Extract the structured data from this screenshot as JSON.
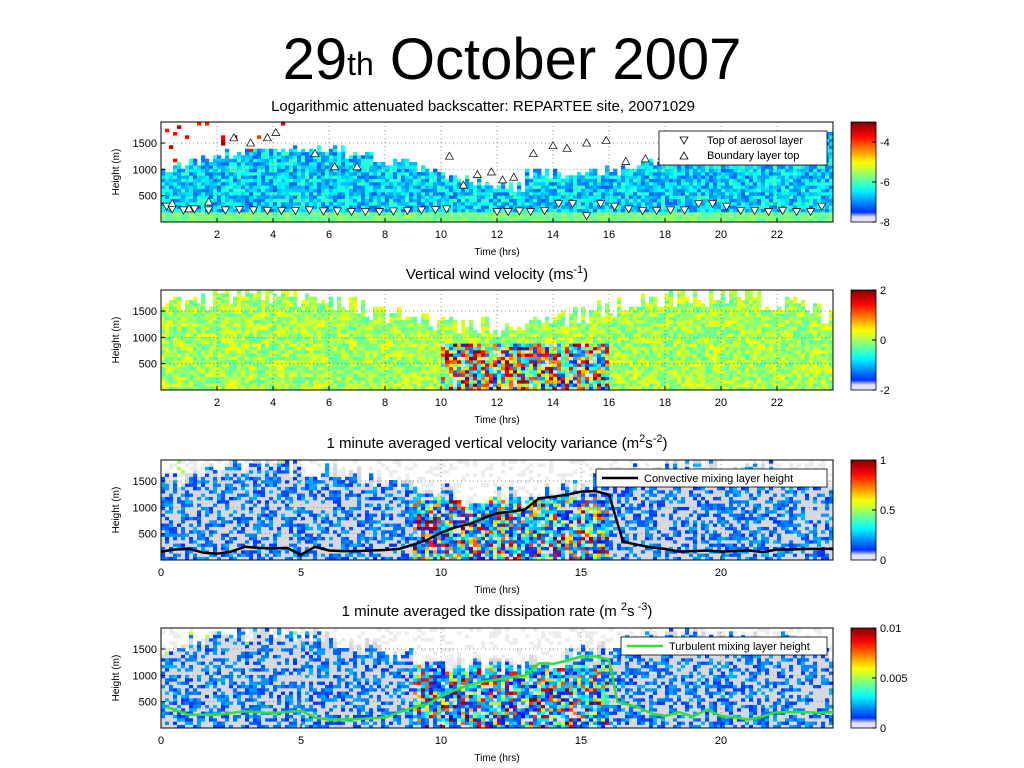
{
  "slide": {
    "title_main": "29",
    "title_sup": "th",
    "title_rest": " October 2007"
  },
  "chart_data": [
    {
      "id": "backscatter",
      "type": "heatmap",
      "title": "Logarithmic attenuated backscatter: REPARTEE site, 20071029",
      "xlabel": "Time (hrs)",
      "ylabel": "Height (m)",
      "xlim": [
        0,
        24
      ],
      "ylim": [
        0,
        1900
      ],
      "xticks": [
        2,
        4,
        6,
        8,
        10,
        12,
        14,
        16,
        18,
        20,
        22
      ],
      "yticks": [
        500,
        1000,
        1500
      ],
      "colorbar": {
        "min": -8,
        "max": -3,
        "ticks": [
          "-4",
          "-6",
          "-8"
        ],
        "tick_values": [
          -4,
          -6,
          -8
        ]
      },
      "legend": {
        "position": "top-right",
        "entries": [
          {
            "symbol": "down-triangle",
            "label": "Top of aerosol layer"
          },
          {
            "symbol": "up-triangle",
            "label": "Boundary layer top"
          }
        ]
      },
      "series": [
        {
          "name": "Top of aerosol layer",
          "marker": "down-triangle",
          "x": [
            0.2,
            0.4,
            0.8,
            1.2,
            1.7,
            2.3,
            2.8,
            3.3,
            3.8,
            4.3,
            4.8,
            5.3,
            5.8,
            6.3,
            6.8,
            7.3,
            7.8,
            8.3,
            8.8,
            9.3,
            9.8,
            10.2,
            12.0,
            12.4,
            12.8,
            13.2,
            13.7,
            14.2,
            14.7,
            15.2,
            15.7,
            16.2,
            16.7,
            17.2,
            17.7,
            18.2,
            18.7,
            19.2,
            19.7,
            20.2,
            20.7,
            21.2,
            21.7,
            22.2,
            22.7,
            23.2,
            23.6
          ],
          "y": [
            300,
            250,
            230,
            250,
            230,
            230,
            240,
            230,
            220,
            220,
            220,
            230,
            210,
            210,
            200,
            200,
            200,
            210,
            220,
            230,
            240,
            250,
            200,
            200,
            210,
            200,
            220,
            350,
            350,
            120,
            350,
            300,
            250,
            220,
            220,
            230,
            230,
            350,
            350,
            300,
            220,
            220,
            200,
            220,
            200,
            200,
            300
          ]
        },
        {
          "name": "Boundary layer top",
          "marker": "up-triangle",
          "x": [
            0.4,
            1.0,
            1.7,
            2.6,
            3.2,
            3.8,
            4.1,
            5.5,
            6.2,
            7.0,
            10.3,
            10.8,
            11.3,
            11.8,
            12.2,
            12.6,
            13.3,
            14.0,
            14.5,
            15.2,
            15.9,
            16.6,
            17.3,
            17.9,
            18.5,
            19.1,
            19.7,
            20.3,
            20.9,
            21.5,
            22.1,
            22.7,
            23.3
          ],
          "y": [
            350,
            250,
            380,
            1600,
            1500,
            1600,
            1700,
            1300,
            1050,
            1050,
            1250,
            700,
            900,
            950,
            800,
            850,
            1300,
            1450,
            1400,
            1500,
            1550,
            1150,
            1200,
            1250,
            1200,
            1250,
            1350,
            1450,
            1400,
            1350,
            1400,
            1250,
            1250
          ]
        }
      ]
    },
    {
      "id": "wind",
      "type": "heatmap",
      "title_parts": [
        "Vertical wind velocity (ms",
        "-1",
        ")"
      ],
      "xlabel": "Time (hrs)",
      "ylabel": "Height (m)",
      "xlim": [
        0,
        24
      ],
      "ylim": [
        0,
        1900
      ],
      "xticks": [
        2,
        4,
        6,
        8,
        10,
        12,
        14,
        16,
        18,
        20,
        22
      ],
      "yticks": [
        500,
        1000,
        1500
      ],
      "colorbar": {
        "min": -2,
        "max": 2,
        "ticks": [
          "2",
          "0",
          "-2"
        ],
        "tick_values": [
          2,
          0,
          -2
        ]
      }
    },
    {
      "id": "variance",
      "type": "heatmap",
      "title_parts": [
        "1 minute averaged vertical velocity variance (m",
        "2",
        "s",
        "-2",
        ")"
      ],
      "xlabel": "Time (hrs)",
      "ylabel": "Height (m)",
      "xlim": [
        0,
        24
      ],
      "ylim": [
        0,
        1900
      ],
      "xticks": [
        0,
        5,
        10,
        15,
        20
      ],
      "yticks": [
        500,
        1000,
        1500
      ],
      "colorbar": {
        "min": 0,
        "max": 1,
        "ticks": [
          "1",
          "0.5",
          "0"
        ],
        "tick_values": [
          1,
          0.5,
          0
        ]
      },
      "legend": {
        "position": "top-right",
        "entries": [
          {
            "symbol": "black-line",
            "label": "Convective mixing layer height"
          }
        ]
      },
      "series": [
        {
          "name": "Convective mixing layer height",
          "color": "#000000",
          "x": [
            0,
            0.5,
            1,
            1.5,
            2,
            2.5,
            3,
            3.5,
            4,
            4.5,
            5,
            5.5,
            6,
            6.5,
            7,
            7.5,
            8,
            8.5,
            9,
            9.5,
            10,
            10.5,
            11,
            11.5,
            12,
            12.5,
            13,
            13.5,
            14,
            14.5,
            15,
            15.5,
            16,
            16.5,
            17,
            17.5,
            18,
            18.5,
            19,
            19.5,
            20,
            20.5,
            21,
            21.5,
            22,
            22.5,
            23,
            23.5,
            24
          ],
          "y": [
            160,
            200,
            210,
            140,
            120,
            160,
            250,
            230,
            220,
            230,
            100,
            250,
            180,
            170,
            170,
            180,
            190,
            210,
            290,
            380,
            520,
            620,
            680,
            790,
            890,
            920,
            960,
            1170,
            1200,
            1240,
            1300,
            1310,
            1240,
            350,
            290,
            240,
            210,
            160,
            170,
            180,
            160,
            170,
            180,
            150,
            200,
            200,
            210,
            210,
            210
          ]
        }
      ]
    },
    {
      "id": "tke",
      "type": "heatmap",
      "title_parts": [
        "1 minute averaged tke dissipation rate (m ",
        "2",
        "s",
        " -3",
        ")"
      ],
      "xlabel": "Time (hrs)",
      "ylabel": "Height (m)",
      "xlim": [
        0,
        24
      ],
      "ylim": [
        0,
        1900
      ],
      "xticks": [
        0,
        5,
        10,
        15,
        20
      ],
      "yticks": [
        500,
        1000,
        1500
      ],
      "colorbar": {
        "min": 0,
        "max": 0.01,
        "ticks": [
          "0.01",
          "0.005",
          "0"
        ],
        "tick_values": [
          0.01,
          0.005,
          0
        ]
      },
      "legend": {
        "position": "top-right",
        "entries": [
          {
            "symbol": "green-line",
            "label": "Turbulent mixing layer height"
          }
        ]
      },
      "series": [
        {
          "name": "Turbulent mixing layer height",
          "color": "#33dd33",
          "x": [
            0.2,
            1,
            2,
            3,
            4,
            5,
            5.5,
            6,
            7,
            8,
            8.5,
            9,
            9.5,
            10,
            10.5,
            11,
            11.5,
            12,
            12.5,
            13,
            13.5,
            14,
            14.5,
            15,
            15.5,
            16,
            16.3,
            17,
            17.5,
            18,
            18.5,
            19,
            19.5,
            20,
            20.5,
            21,
            21.5,
            22,
            22.5,
            23,
            23.5,
            24
          ],
          "y": [
            400,
            250,
            250,
            320,
            280,
            330,
            200,
            160,
            170,
            200,
            300,
            390,
            450,
            600,
            720,
            820,
            880,
            920,
            960,
            1000,
            1230,
            1220,
            1280,
            1360,
            1360,
            1300,
            500,
            400,
            280,
            230,
            300,
            220,
            350,
            230,
            200,
            160,
            220,
            300,
            300,
            300,
            290,
            300
          ]
        }
      ]
    }
  ]
}
